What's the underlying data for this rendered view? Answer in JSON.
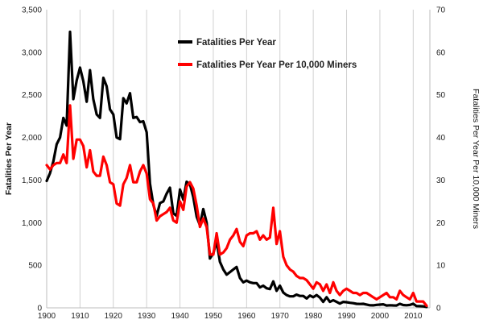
{
  "chart_data": {
    "type": "line",
    "title": "",
    "xlabel": "",
    "ylabel": "Fatalities Per Year",
    "y2label": "Fatalities Per Year Per 10,000 Miners",
    "xlim": [
      1900,
      2015
    ],
    "ylim": [
      0,
      3500
    ],
    "y2lim": [
      0,
      70
    ],
    "x_ticks": [
      "1900",
      "1910",
      "1920",
      "1930",
      "1940",
      "1950",
      "1960",
      "1970",
      "1980",
      "1990",
      "2000",
      "2010"
    ],
    "y_ticks": [
      "0",
      "500",
      "1,000",
      "1,500",
      "2,000",
      "2,500",
      "3,000",
      "3,500"
    ],
    "y2_ticks": [
      "0",
      "10",
      "20",
      "30",
      "40",
      "50",
      "60",
      "70"
    ],
    "grid": "vertical",
    "legend_position": "top-center",
    "series": [
      {
        "name": "Fatalities Per Year",
        "axis": "left",
        "color": "#000000",
        "x": [
          1900,
          1901,
          1902,
          1903,
          1904,
          1905,
          1906,
          1907,
          1908,
          1909,
          1910,
          1911,
          1912,
          1913,
          1914,
          1915,
          1916,
          1917,
          1918,
          1919,
          1920,
          1921,
          1922,
          1923,
          1924,
          1925,
          1926,
          1927,
          1928,
          1929,
          1930,
          1931,
          1932,
          1933,
          1934,
          1935,
          1936,
          1937,
          1938,
          1939,
          1940,
          1941,
          1942,
          1943,
          1944,
          1945,
          1946,
          1947,
          1948,
          1949,
          1950,
          1951,
          1952,
          1953,
          1954,
          1955,
          1956,
          1957,
          1958,
          1959,
          1960,
          1961,
          1962,
          1963,
          1964,
          1965,
          1966,
          1967,
          1968,
          1969,
          1970,
          1971,
          1972,
          1973,
          1974,
          1975,
          1976,
          1977,
          1978,
          1979,
          1980,
          1981,
          1982,
          1983,
          1984,
          1985,
          1986,
          1987,
          1988,
          1989,
          1990,
          1991,
          1992,
          1993,
          1994,
          1995,
          1996,
          1997,
          1998,
          1999,
          2000,
          2001,
          2002,
          2003,
          2004,
          2005,
          2006,
          2007,
          2008,
          2009,
          2010,
          2011,
          2012,
          2013,
          2014
        ],
        "values": [
          1490,
          1580,
          1720,
          1920,
          2000,
          2230,
          2140,
          3240,
          2450,
          2670,
          2820,
          2660,
          2420,
          2790,
          2450,
          2270,
          2230,
          2700,
          2600,
          2330,
          2270,
          2000,
          1980,
          2460,
          2400,
          2520,
          2230,
          2240,
          2180,
          2190,
          2060,
          1460,
          1210,
          1080,
          1230,
          1250,
          1340,
          1410,
          1110,
          1080,
          1390,
          1270,
          1480,
          1450,
          1300,
          1070,
          970,
          1160,
          1000,
          580,
          640,
          780,
          540,
          450,
          390,
          420,
          450,
          480,
          350,
          300,
          320,
          300,
          290,
          290,
          240,
          260,
          230,
          220,
          310,
          200,
          260,
          180,
          150,
          135,
          135,
          155,
          140,
          140,
          110,
          145,
          125,
          150,
          120,
          70,
          125,
          70,
          90,
          70,
          50,
          70,
          66,
          60,
          55,
          47,
          45,
          47,
          39,
          30,
          29,
          35,
          38,
          42,
          27,
          30,
          28,
          27,
          47,
          33,
          30,
          34,
          48,
          21,
          20,
          18,
          10
        ]
      },
      {
        "name": "Fatalities Per Year Per 10,000 Miners",
        "axis": "right",
        "color": "#ff0000",
        "x": [
          1900,
          1901,
          1902,
          1903,
          1904,
          1905,
          1906,
          1907,
          1908,
          1909,
          1910,
          1911,
          1912,
          1913,
          1914,
          1915,
          1916,
          1917,
          1918,
          1919,
          1920,
          1921,
          1922,
          1923,
          1924,
          1925,
          1926,
          1927,
          1928,
          1929,
          1930,
          1931,
          1932,
          1933,
          1934,
          1935,
          1936,
          1937,
          1938,
          1939,
          1940,
          1941,
          1942,
          1943,
          1944,
          1945,
          1946,
          1947,
          1948,
          1949,
          1950,
          1951,
          1952,
          1953,
          1954,
          1955,
          1956,
          1957,
          1958,
          1959,
          1960,
          1961,
          1962,
          1963,
          1964,
          1965,
          1966,
          1967,
          1968,
          1969,
          1970,
          1971,
          1972,
          1973,
          1974,
          1975,
          1976,
          1977,
          1978,
          1979,
          1980,
          1981,
          1982,
          1983,
          1984,
          1985,
          1986,
          1987,
          1988,
          1989,
          1990,
          1991,
          1992,
          1993,
          1994,
          1995,
          1996,
          1997,
          1998,
          1999,
          2000,
          2001,
          2002,
          2003,
          2004,
          2005,
          2006,
          2007,
          2008,
          2009,
          2010,
          2011,
          2012,
          2013,
          2014
        ],
        "values": [
          33.5,
          32.5,
          33.5,
          34,
          34,
          36,
          34,
          47.5,
          35,
          39.5,
          39.5,
          38,
          33,
          37,
          32,
          31,
          31,
          35.5,
          33.5,
          29.5,
          29,
          24.5,
          24,
          29,
          30.5,
          33.5,
          29.5,
          29.5,
          32,
          33.5,
          31.5,
          25.5,
          24.5,
          20.5,
          21.5,
          22,
          22.5,
          23.5,
          20.5,
          20,
          25,
          23,
          28.5,
          29.5,
          28,
          24,
          19,
          21,
          19,
          12.5,
          12.5,
          17.5,
          12.5,
          13,
          14,
          16,
          17,
          18.5,
          15.5,
          14.5,
          17,
          17.5,
          17.5,
          18,
          16,
          17,
          16,
          16.5,
          23.5,
          15,
          18,
          12,
          10,
          9,
          8.5,
          7.5,
          7,
          7,
          6.5,
          5.5,
          4.5,
          6,
          5.5,
          4,
          5.5,
          3.5,
          6,
          4,
          3,
          4,
          4.5,
          4,
          3.5,
          3.5,
          3,
          3.5,
          3.5,
          3,
          2.5,
          2,
          2.5,
          3,
          3.5,
          2.5,
          2.5,
          2,
          4,
          3,
          2.5,
          2,
          3.5,
          1.5,
          1.5,
          1.5,
          0.5
        ]
      }
    ]
  }
}
